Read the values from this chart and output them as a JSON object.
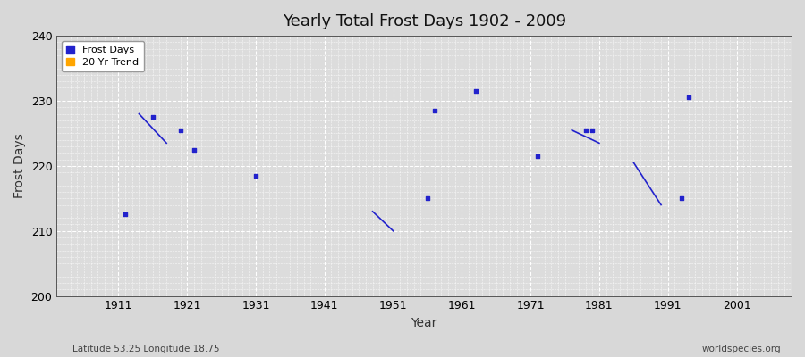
{
  "title": "Yearly Total Frost Days 1902 - 2009",
  "xlabel": "Year",
  "ylabel": "Frost Days",
  "xlim": [
    1902,
    2009
  ],
  "ylim": [
    200,
    240
  ],
  "yticks": [
    200,
    210,
    220,
    230,
    240
  ],
  "xticks": [
    1911,
    1921,
    1931,
    1941,
    1951,
    1961,
    1971,
    1981,
    1991,
    2001
  ],
  "bg_color": "#d8d8d8",
  "plot_bg_color": "#dcdcdc",
  "grid_color": "#ffffff",
  "frost_color": "#2222cc",
  "trend_color": "#ffa500",
  "scatter_points": [
    [
      1912,
      212.5
    ],
    [
      1916,
      227.5
    ],
    [
      1920,
      225.5
    ],
    [
      1922,
      222.5
    ],
    [
      1931,
      218.5
    ],
    [
      1956,
      215.0
    ],
    [
      1957,
      228.5
    ],
    [
      1963,
      231.5
    ],
    [
      1972,
      221.5
    ],
    [
      1979,
      225.5
    ],
    [
      1980,
      225.5
    ],
    [
      1993,
      215.0
    ],
    [
      1994,
      230.5
    ]
  ],
  "trend_lines": [
    [
      [
        1914,
        228.0
      ],
      [
        1918,
        223.5
      ]
    ],
    [
      [
        1948,
        213.0
      ],
      [
        1951,
        210.0
      ]
    ],
    [
      [
        1977,
        225.5
      ],
      [
        1981,
        223.5
      ]
    ],
    [
      [
        1986,
        220.5
      ],
      [
        1990,
        214.0
      ]
    ]
  ],
  "footnote_left": "Latitude 53.25 Longitude 18.75",
  "footnote_right": "worldspecies.org"
}
